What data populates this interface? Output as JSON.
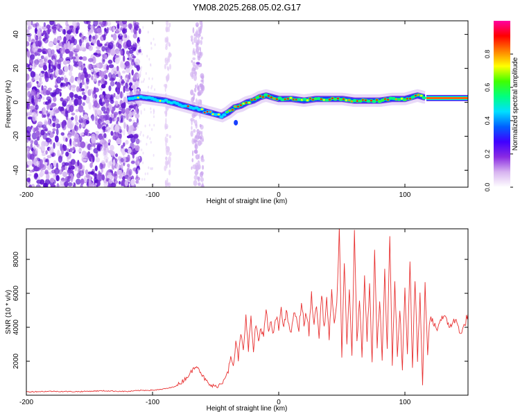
{
  "title": "YM08.2025.268.05.02.G17",
  "chart_data": [
    {
      "type": "heatmap",
      "title": "YM08.2025.268.05.02.G17",
      "xlabel": "Height of straight line (km)",
      "ylabel": "Frequency (Hz)",
      "xlim": [
        -200,
        150
      ],
      "ylim": [
        -50,
        48
      ],
      "xticks": [
        -200,
        -100,
        0,
        100
      ],
      "yticks": [
        -40,
        -20,
        0,
        20,
        40
      ],
      "colorbar": {
        "label": "Normalized spectral amplitude",
        "range": [
          0,
          1
        ],
        "ticks": [
          "0.0",
          "0.2",
          "0.4",
          "0.6",
          "0.8"
        ],
        "colors": [
          "#ffffff",
          "#d8b4f0",
          "#8a2be2",
          "#4000ff",
          "#0060ff",
          "#00e0ff",
          "#00ff80",
          "#40ff00",
          "#ffff00",
          "#ff8000",
          "#ff0000",
          "#ff00a0"
        ]
      },
      "ridge": {
        "description": "dominant frequency track",
        "x": [
          -120,
          -110,
          -100,
          -90,
          -80,
          -70,
          -60,
          -50,
          -45,
          -40,
          -35,
          -30,
          -25,
          -20,
          -15,
          -10,
          -5,
          0,
          10,
          20,
          30,
          40,
          50,
          60,
          70,
          80,
          90,
          100,
          105,
          110,
          115,
          150
        ],
        "y": [
          2,
          3,
          2,
          1,
          -1,
          -3,
          -5,
          -7,
          -8,
          -6,
          -3,
          -2,
          0,
          1,
          3,
          4,
          3,
          2,
          2,
          1,
          2,
          2,
          2,
          1,
          1,
          1,
          2,
          2,
          3,
          4,
          3,
          2.5
        ]
      }
    },
    {
      "type": "line",
      "xlabel": "Height of straight line (km)",
      "ylabel": "SNR (10 * v/v)",
      "xlim": [
        -200,
        150
      ],
      "ylim": [
        0,
        9800
      ],
      "xticks": [
        -200,
        -100,
        0,
        100
      ],
      "yticks": [
        2000,
        4000,
        6000,
        8000
      ],
      "color": "#e83030",
      "series": [
        {
          "name": "SNR",
          "x": [
            -200,
            -180,
            -160,
            -140,
            -120,
            -110,
            -100,
            -95,
            -90,
            -85,
            -80,
            -75,
            -70,
            -65,
            -60,
            -55,
            -50,
            -45,
            -40,
            -38,
            -36,
            -34,
            -32,
            -30,
            -28,
            -26,
            -24,
            -22,
            -20,
            -18,
            -16,
            -14,
            -12,
            -10,
            -8,
            -6,
            -4,
            -2,
            0,
            2,
            4,
            6,
            8,
            10,
            12,
            14,
            16,
            18,
            20,
            22,
            24,
            26,
            28,
            30,
            32,
            34,
            36,
            38,
            40,
            42,
            44,
            46,
            48,
            50,
            52,
            54,
            56,
            58,
            60,
            62,
            64,
            66,
            68,
            70,
            72,
            74,
            76,
            78,
            80,
            82,
            84,
            86,
            88,
            90,
            92,
            94,
            96,
            98,
            100,
            102,
            104,
            106,
            108,
            110,
            112,
            114,
            116,
            118,
            120,
            125,
            130,
            135,
            140,
            145,
            150
          ],
          "values": [
            200,
            230,
            210,
            260,
            220,
            280,
            300,
            320,
            380,
            450,
            600,
            900,
            1300,
            1800,
            1100,
            600,
            500,
            700,
            1500,
            2100,
            1700,
            3000,
            2200,
            3600,
            2500,
            4800,
            2800,
            4500,
            2600,
            4200,
            3200,
            4000,
            3500,
            4900,
            3800,
            4200,
            3600,
            4600,
            3900,
            5200,
            4000,
            4800,
            4300,
            3500,
            5000,
            4400,
            3900,
            5500,
            4200,
            4800,
            3700,
            6000,
            4100,
            5400,
            3300,
            6100,
            3900,
            5700,
            3200,
            6300,
            4000,
            5200,
            9800,
            2400,
            7600,
            3000,
            6200,
            2500,
            9500,
            3100,
            5800,
            2200,
            7000,
            3400,
            6400,
            2000,
            8600,
            3000,
            5600,
            2200,
            7200,
            2700,
            9400,
            1800,
            6700,
            2300,
            5200,
            1600,
            6300,
            2500,
            8000,
            1500,
            6800,
            2200,
            5800,
            400,
            6500,
            2500,
            4600,
            3900,
            4700,
            4100,
            4400,
            3600,
            4800
          ]
        }
      ]
    }
  ]
}
